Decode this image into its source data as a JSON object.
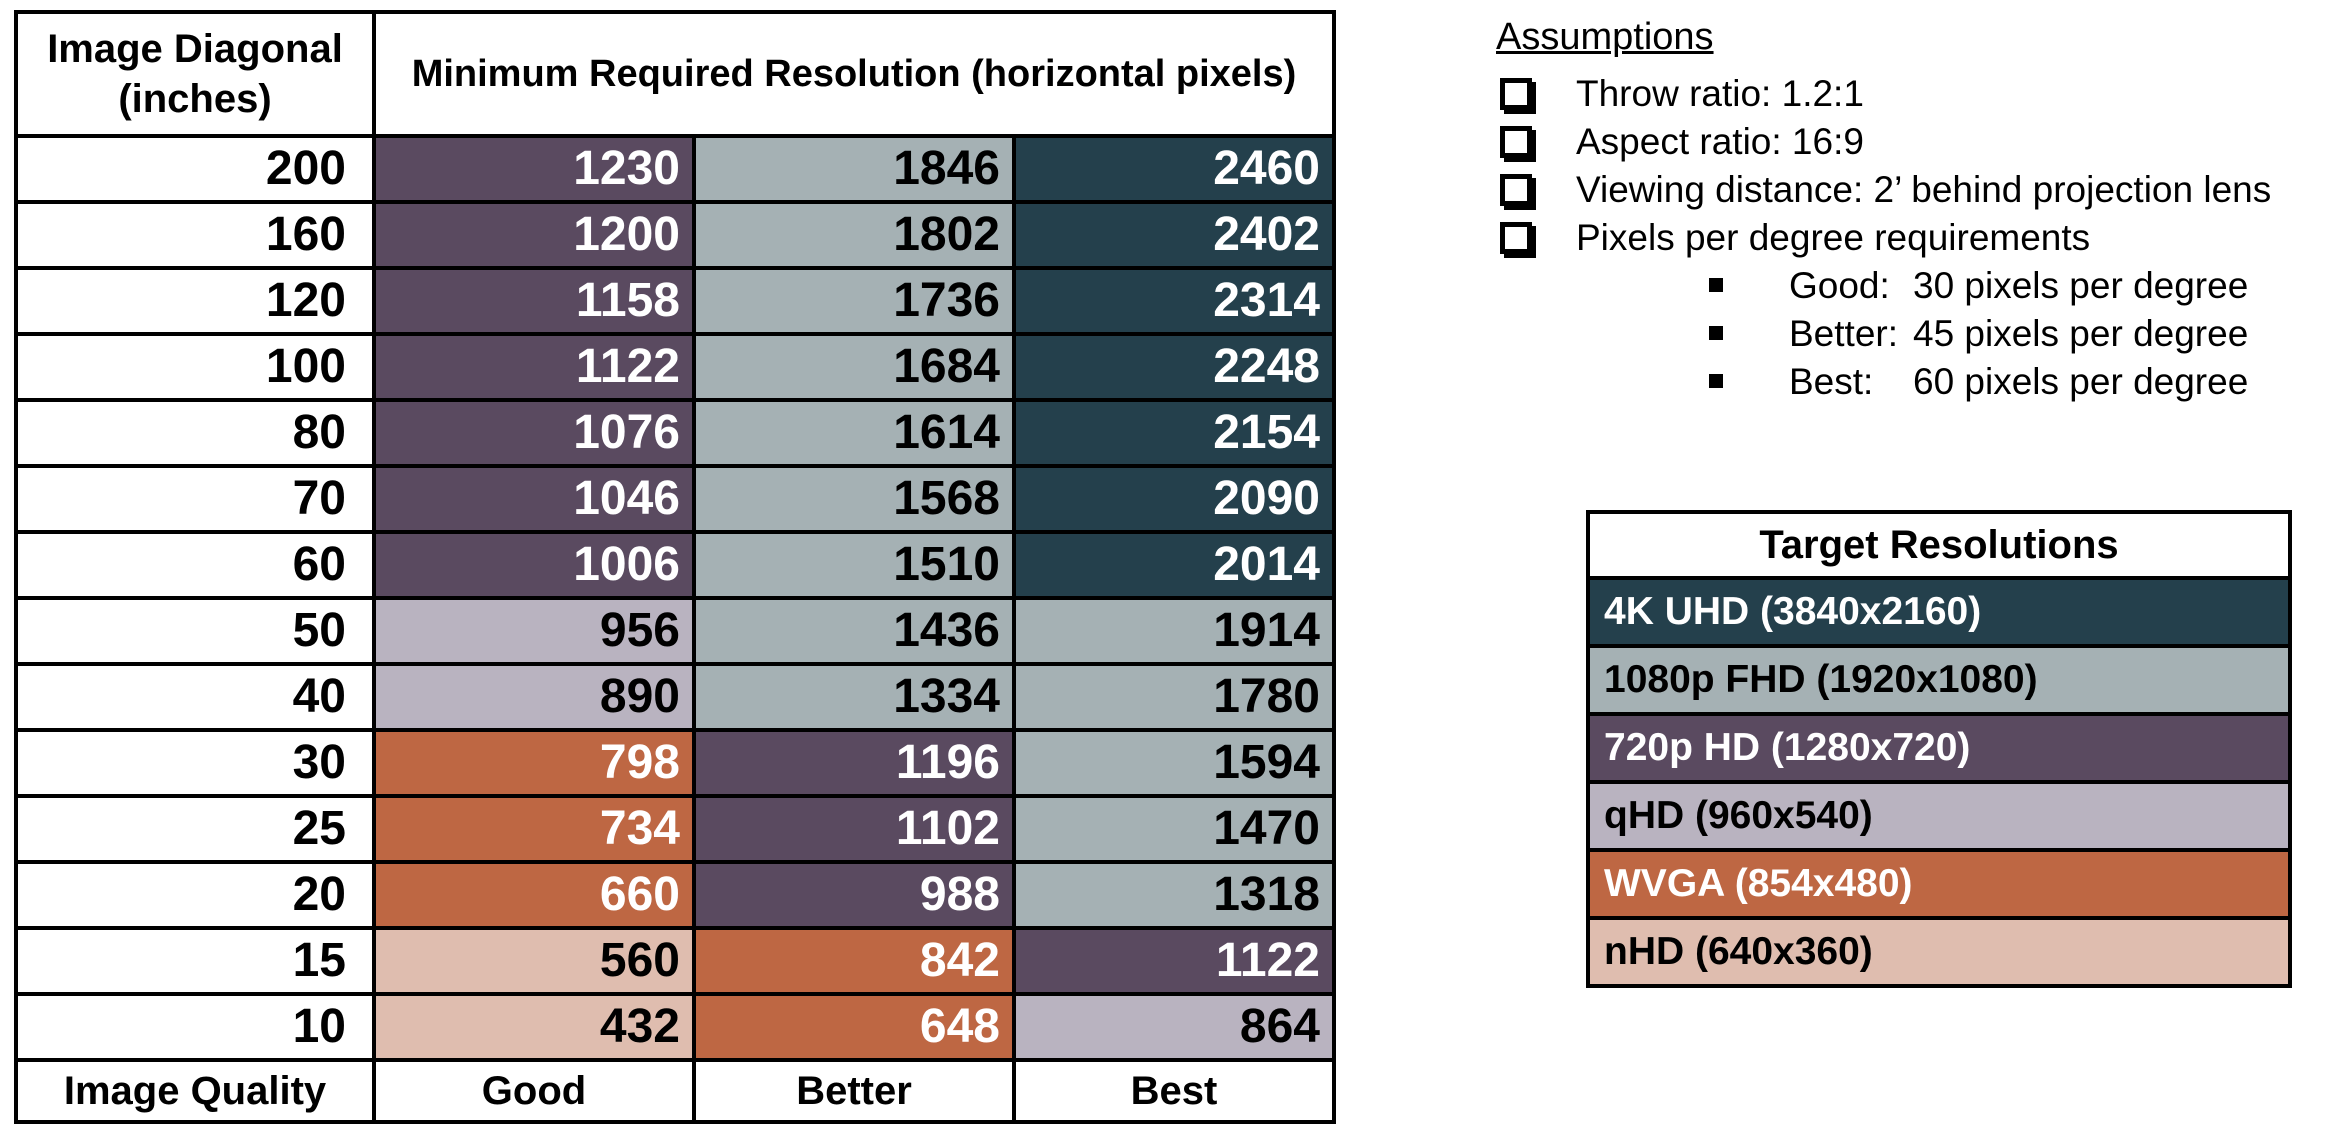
{
  "colors": {
    "uhd4k": "#24404C",
    "fhd1080": "#A5B1B4",
    "hd720": "#5A4A60",
    "qhd": "#B9B3C0",
    "wvga": "#BE6743",
    "nhd": "#DFBDAF"
  },
  "table": {
    "header": {
      "col1_line1": "Image Diagonal",
      "col1_line2": "(inches)",
      "span": "Minimum Required Resolution (horizontal pixels)"
    },
    "rows": [
      {
        "diagonal": "200",
        "good": {
          "v": "1230",
          "c": "hd720"
        },
        "better": {
          "v": "1846",
          "c": "fhd1080"
        },
        "best": {
          "v": "2460",
          "c": "uhd4k"
        }
      },
      {
        "diagonal": "160",
        "good": {
          "v": "1200",
          "c": "hd720"
        },
        "better": {
          "v": "1802",
          "c": "fhd1080"
        },
        "best": {
          "v": "2402",
          "c": "uhd4k"
        }
      },
      {
        "diagonal": "120",
        "good": {
          "v": "1158",
          "c": "hd720"
        },
        "better": {
          "v": "1736",
          "c": "fhd1080"
        },
        "best": {
          "v": "2314",
          "c": "uhd4k"
        }
      },
      {
        "diagonal": "100",
        "good": {
          "v": "1122",
          "c": "hd720"
        },
        "better": {
          "v": "1684",
          "c": "fhd1080"
        },
        "best": {
          "v": "2248",
          "c": "uhd4k"
        }
      },
      {
        "diagonal": "80",
        "good": {
          "v": "1076",
          "c": "hd720"
        },
        "better": {
          "v": "1614",
          "c": "fhd1080"
        },
        "best": {
          "v": "2154",
          "c": "uhd4k"
        }
      },
      {
        "diagonal": "70",
        "good": {
          "v": "1046",
          "c": "hd720"
        },
        "better": {
          "v": "1568",
          "c": "fhd1080"
        },
        "best": {
          "v": "2090",
          "c": "uhd4k"
        }
      },
      {
        "diagonal": "60",
        "good": {
          "v": "1006",
          "c": "hd720"
        },
        "better": {
          "v": "1510",
          "c": "fhd1080"
        },
        "best": {
          "v": "2014",
          "c": "uhd4k"
        }
      },
      {
        "diagonal": "50",
        "good": {
          "v": "956",
          "c": "qhd"
        },
        "better": {
          "v": "1436",
          "c": "fhd1080"
        },
        "best": {
          "v": "1914",
          "c": "fhd1080"
        }
      },
      {
        "diagonal": "40",
        "good": {
          "v": "890",
          "c": "qhd"
        },
        "better": {
          "v": "1334",
          "c": "fhd1080"
        },
        "best": {
          "v": "1780",
          "c": "fhd1080"
        }
      },
      {
        "diagonal": "30",
        "good": {
          "v": "798",
          "c": "wvga"
        },
        "better": {
          "v": "1196",
          "c": "hd720"
        },
        "best": {
          "v": "1594",
          "c": "fhd1080"
        }
      },
      {
        "diagonal": "25",
        "good": {
          "v": "734",
          "c": "wvga"
        },
        "better": {
          "v": "1102",
          "c": "hd720"
        },
        "best": {
          "v": "1470",
          "c": "fhd1080"
        }
      },
      {
        "diagonal": "20",
        "good": {
          "v": "660",
          "c": "wvga"
        },
        "better": {
          "v": "988",
          "c": "hd720"
        },
        "best": {
          "v": "1318",
          "c": "fhd1080"
        }
      },
      {
        "diagonal": "15",
        "good": {
          "v": "560",
          "c": "nhd"
        },
        "better": {
          "v": "842",
          "c": "wvga"
        },
        "best": {
          "v": "1122",
          "c": "hd720"
        }
      },
      {
        "diagonal": "10",
        "good": {
          "v": "432",
          "c": "nhd"
        },
        "better": {
          "v": "648",
          "c": "wvga"
        },
        "best": {
          "v": "864",
          "c": "qhd"
        }
      }
    ],
    "footer": {
      "col1": "Image Quality",
      "good": "Good",
      "better": "Better",
      "best": "Best"
    }
  },
  "assumptions": {
    "title": "Assumptions",
    "bullets": [
      "Throw ratio: 1.2:1",
      "Aspect ratio: 16:9",
      "Viewing distance: 2’ behind projection lens",
      "Pixels per degree requirements"
    ],
    "sub_bullets": [
      {
        "label": "Good:",
        "value": "30 pixels per degree"
      },
      {
        "label": "Better:",
        "value": "45 pixels per degree"
      },
      {
        "label": "Best:",
        "value": "60 pixels per degree"
      }
    ]
  },
  "legend": {
    "title": "Target Resolutions",
    "items": [
      {
        "label": "4K UHD (3840x2160)",
        "c": "uhd4k"
      },
      {
        "label": "1080p FHD (1920x1080)",
        "c": "fhd1080"
      },
      {
        "label": "720p HD (1280x720)",
        "c": "hd720"
      },
      {
        "label": "qHD (960x540)",
        "c": "qhd"
      },
      {
        "label": "WVGA (854x480)",
        "c": "wvga"
      },
      {
        "label": "nHD (640x360)",
        "c": "nhd"
      }
    ]
  }
}
